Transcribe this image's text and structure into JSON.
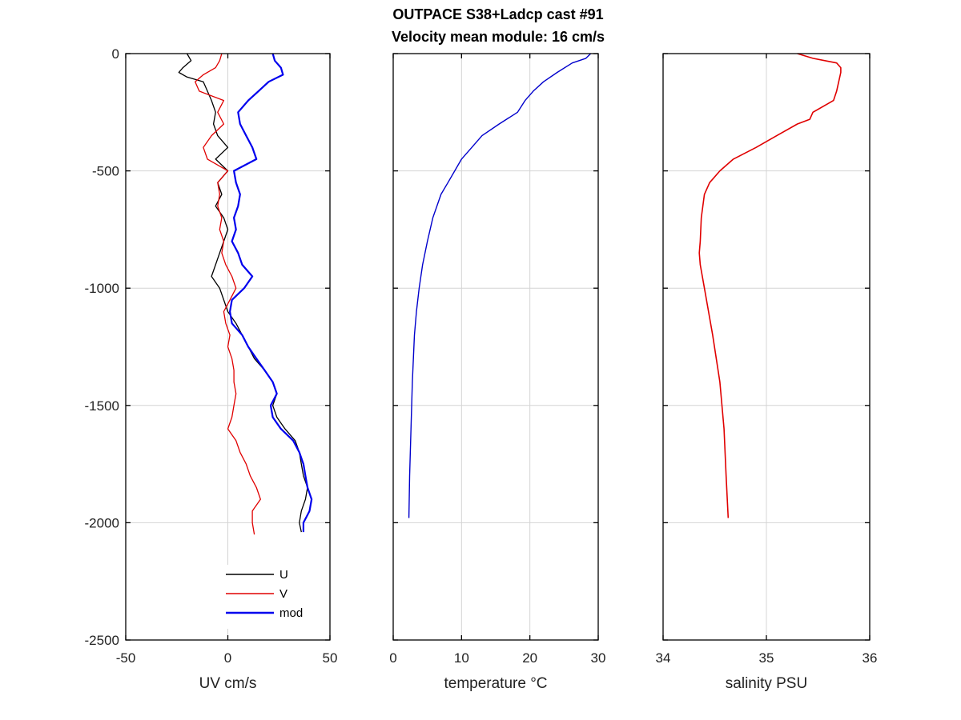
{
  "figure": {
    "title_line1": "OUTPACE S38+Ladcp cast #91",
    "title_line2": "Velocity mean module:  16 cm/s"
  },
  "colors": {
    "U": "#000000",
    "V": "#e00000",
    "mod": "#0000ee",
    "temperature": "#0000cc",
    "salinity": "#e00000"
  },
  "chart_data": [
    {
      "type": "line",
      "title": "",
      "xlabel": "UV cm/s",
      "ylabel": "",
      "xlim": [
        -50,
        50
      ],
      "ylim": [
        -2500,
        0
      ],
      "xticks": [
        "-50",
        "0",
        "50"
      ],
      "yticks": [
        "0",
        "-500",
        "-1000",
        "-1500",
        "-2000",
        "-2500"
      ],
      "grid": true,
      "legend": "bottom-right",
      "series": [
        {
          "name": "U",
          "depth": [
            0,
            -30,
            -60,
            -80,
            -100,
            -120,
            -160,
            -200,
            -250,
            -300,
            -350,
            -400,
            -450,
            -500,
            -550,
            -600,
            -650,
            -700,
            -750,
            -800,
            -850,
            -900,
            -950,
            -1000,
            -1050,
            -1100,
            -1150,
            -1200,
            -1250,
            -1300,
            -1350,
            -1400,
            -1450,
            -1500,
            -1550,
            -1600,
            -1650,
            -1700,
            -1750,
            -1800,
            -1850,
            -1900,
            -1950,
            -2000,
            -2040
          ],
          "values": [
            -20,
            -18,
            -22,
            -24,
            -20,
            -12,
            -10,
            -8,
            -6,
            -7,
            -5,
            0,
            -6,
            0,
            -5,
            -3,
            -6,
            -2,
            0,
            -2,
            -4,
            -6,
            -8,
            -4,
            -2,
            0,
            4,
            7,
            10,
            13,
            18,
            22,
            24,
            22,
            24,
            28,
            33,
            35,
            36,
            37,
            39,
            38,
            36,
            35,
            36
          ]
        },
        {
          "name": "V",
          "depth": [
            0,
            -30,
            -60,
            -90,
            -120,
            -160,
            -200,
            -250,
            -300,
            -350,
            -400,
            -450,
            -500,
            -550,
            -600,
            -650,
            -700,
            -750,
            -800,
            -850,
            -900,
            -950,
            -1000,
            -1050,
            -1100,
            -1150,
            -1200,
            -1250,
            -1300,
            -1350,
            -1400,
            -1450,
            -1500,
            -1550,
            -1600,
            -1650,
            -1700,
            -1750,
            -1800,
            -1850,
            -1900,
            -1950,
            -2000,
            -2050
          ],
          "values": [
            -3,
            -4,
            -6,
            -12,
            -16,
            -14,
            -2,
            -5,
            -2,
            -8,
            -12,
            -10,
            0,
            -5,
            -4,
            -5,
            -3,
            -4,
            -2,
            -3,
            -1,
            2,
            4,
            1,
            -2,
            -1,
            1,
            0,
            2,
            3,
            3,
            4,
            3,
            2,
            0,
            4,
            6,
            9,
            11,
            14,
            16,
            12,
            12,
            13
          ]
        },
        {
          "name": "mod",
          "depth": [
            0,
            -30,
            -60,
            -90,
            -120,
            -160,
            -200,
            -250,
            -300,
            -350,
            -400,
            -450,
            -500,
            -550,
            -600,
            -650,
            -700,
            -750,
            -800,
            -850,
            -900,
            -950,
            -1000,
            -1050,
            -1100,
            -1150,
            -1200,
            -1250,
            -1300,
            -1350,
            -1400,
            -1450,
            -1500,
            -1550,
            -1600,
            -1650,
            -1700,
            -1750,
            -1800,
            -1850,
            -1900,
            -1950,
            -2000,
            -2040
          ],
          "values": [
            22,
            23,
            26,
            27,
            20,
            15,
            10,
            5,
            6,
            9,
            12,
            14,
            3,
            4,
            6,
            5,
            3,
            4,
            2,
            5,
            7,
            12,
            8,
            2,
            1,
            2,
            7,
            10,
            14,
            18,
            22,
            24,
            21,
            22,
            26,
            32,
            35,
            37,
            38,
            39,
            41,
            40,
            37,
            37
          ]
        }
      ]
    },
    {
      "type": "line",
      "title": "",
      "xlabel": "temperature °C",
      "ylabel": "",
      "xlim": [
        0,
        30
      ],
      "ylim": [
        -2500,
        0
      ],
      "xticks": [
        "0",
        "10",
        "20",
        "30"
      ],
      "grid": true,
      "series": [
        {
          "depth": [
            0,
            -20,
            -40,
            -80,
            -120,
            -160,
            -200,
            -250,
            -300,
            -350,
            -400,
            -450,
            -500,
            -550,
            -600,
            -700,
            -800,
            -900,
            -1000,
            -1100,
            -1200,
            -1400,
            -1600,
            -1800,
            -1980
          ],
          "values": [
            28.9,
            28.2,
            26.2,
            24.0,
            22.0,
            20.5,
            19.3,
            18.2,
            15.5,
            13.0,
            11.5,
            10.0,
            9.0,
            8.0,
            7.0,
            5.8,
            5.0,
            4.3,
            3.8,
            3.4,
            3.1,
            2.8,
            2.6,
            2.4,
            2.3
          ]
        }
      ]
    },
    {
      "type": "line",
      "title": "",
      "xlabel": "salinity PSU",
      "ylabel": "",
      "xlim": [
        34,
        36
      ],
      "ylim": [
        -2500,
        0
      ],
      "xticks": [
        "34",
        "35",
        "36"
      ],
      "grid": true,
      "series": [
        {
          "depth": [
            0,
            -20,
            -40,
            -60,
            -80,
            -120,
            -160,
            -200,
            -250,
            -280,
            -300,
            -350,
            -400,
            -450,
            -500,
            -550,
            -600,
            -700,
            -800,
            -850,
            -900,
            -1000,
            -1200,
            -1400,
            -1600,
            -1800,
            -1980
          ],
          "values": [
            35.3,
            35.45,
            35.68,
            35.72,
            35.72,
            35.7,
            35.68,
            35.65,
            35.45,
            35.42,
            35.3,
            35.1,
            34.9,
            34.68,
            34.55,
            34.45,
            34.4,
            34.37,
            34.36,
            34.35,
            34.36,
            34.4,
            34.48,
            34.55,
            34.59,
            34.61,
            34.63
          ]
        }
      ]
    }
  ]
}
